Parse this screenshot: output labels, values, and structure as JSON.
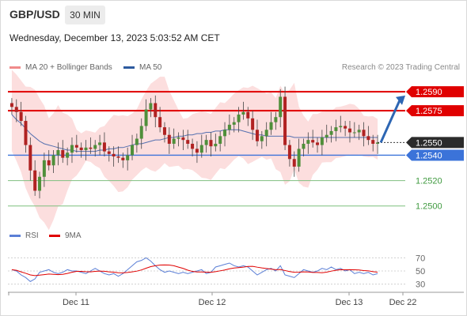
{
  "header": {
    "pair": "GBP/USD",
    "timeframe": "30 MIN",
    "datetime": "Wednesday, December 13, 2023 5:03:52 AM CET"
  },
  "legend": {
    "ma20": "MA 20 + Bollinger Bands",
    "ma50": "MA 50",
    "credit": "Research © 2023 Trading Central"
  },
  "rsi_legend": {
    "rsi": "RSI",
    "ma": "9MA"
  },
  "colors": {
    "resistance": "#e00000",
    "support_current": "#3b73d9",
    "support": "#7fbf7f",
    "bollinger": "#fbd3d3",
    "ma50": "#5570b0",
    "rsi": "#5b7fd6",
    "rsi_ma": "#e00000",
    "arrow": "#2d66b3",
    "bull": "#4f8f3a",
    "bear": "#b02222"
  },
  "chart_data": [
    {
      "type": "candlestick",
      "x_ticks": [
        "Dec 11",
        "Dec 12",
        "Dec 13",
        "Dec 22"
      ],
      "ylim": [
        1.2493,
        1.26
      ],
      "levels": [
        {
          "value": "1.2590",
          "kind": "resistance"
        },
        {
          "value": "1.2575",
          "kind": "resistance"
        },
        {
          "value": "1.2550",
          "kind": "current"
        },
        {
          "value": "1.2540",
          "kind": "support-current"
        },
        {
          "value": "1.2520",
          "kind": "support"
        },
        {
          "value": "1.2500",
          "kind": "support"
        }
      ],
      "close": [
        1.2578,
        1.2574,
        1.2567,
        1.2548,
        1.2528,
        1.2512,
        1.2523,
        1.2536,
        1.2532,
        1.254,
        1.2544,
        1.2538,
        1.2542,
        1.2548,
        1.2546,
        1.2544,
        1.2546,
        1.2545,
        1.2548,
        1.255,
        1.2543,
        1.2541,
        1.2539,
        1.2538,
        1.2536,
        1.254,
        1.2548,
        1.2553,
        1.2563,
        1.2576,
        1.2581,
        1.257,
        1.2562,
        1.2556,
        1.2549,
        1.2553,
        1.2554,
        1.2552,
        1.2549,
        1.2545,
        1.2542,
        1.2548,
        1.2552,
        1.2547,
        1.2549,
        1.2555,
        1.256,
        1.2564,
        1.2566,
        1.2572,
        1.2574,
        1.2569,
        1.256,
        1.2551,
        1.2555,
        1.256,
        1.2566,
        1.257,
        1.2586,
        1.2548,
        1.2537,
        1.2531,
        1.2545,
        1.2549,
        1.2552,
        1.255,
        1.2548,
        1.2554,
        1.2556,
        1.2559,
        1.2562,
        1.2563,
        1.2561,
        1.2558,
        1.2558,
        1.256,
        1.2555,
        1.2552,
        1.2549,
        1.255
      ],
      "ma50": [
        1.2572,
        1.2568,
        1.2565,
        1.2561,
        1.2557,
        1.2554,
        1.2551,
        1.2549,
        1.2548,
        1.2547,
        1.2546,
        1.2545,
        1.2544,
        1.2544,
        1.2543,
        1.2543,
        1.2543,
        1.2543,
        1.2543,
        1.2544,
        1.2544,
        1.2545,
        1.2545,
        1.2546,
        1.2546,
        1.2547,
        1.2548,
        1.2549,
        1.2549,
        1.255,
        1.2551,
        1.2552,
        1.2552,
        1.2553,
        1.2554,
        1.2554,
        1.2555,
        1.2555,
        1.2556,
        1.2556,
        1.2557,
        1.2557,
        1.2558,
        1.2558,
        1.2559,
        1.2559,
        1.256,
        1.256,
        1.256,
        1.256,
        1.2559,
        1.2558,
        1.2557,
        1.2556,
        1.2556,
        1.2555,
        1.2555,
        1.2555,
        1.2555,
        1.2555,
        1.2555,
        1.2554,
        1.2554,
        1.2554,
        1.2554,
        1.2554,
        1.2554,
        1.2554,
        1.2554,
        1.2554,
        1.2554,
        1.2554,
        1.2554,
        1.2554,
        1.2554,
        1.2554,
        1.2554,
        1.2554,
        1.2554,
        1.2554
      ],
      "bb_width": [
        0.0032,
        0.0034,
        0.0036,
        0.004,
        0.0044,
        0.0046,
        0.0047,
        0.0046,
        0.0044,
        0.0042,
        0.004,
        0.0036,
        0.003,
        0.0024,
        0.0018,
        0.0014,
        0.0012,
        0.0012,
        0.0013,
        0.0016,
        0.002,
        0.0024,
        0.0028,
        0.003,
        0.003,
        0.0028,
        0.0026,
        0.0026,
        0.0028,
        0.003,
        0.0034,
        0.0036,
        0.0036,
        0.0034,
        0.003,
        0.0026,
        0.0022,
        0.002,
        0.002,
        0.0022,
        0.0024,
        0.0026,
        0.0026,
        0.0026,
        0.0026,
        0.0026,
        0.0026,
        0.0026,
        0.0026,
        0.0026,
        0.0028,
        0.003,
        0.003,
        0.0028,
        0.0026,
        0.0026,
        0.0026,
        0.0028,
        0.0034,
        0.0036,
        0.0036,
        0.0034,
        0.003,
        0.0028,
        0.0026,
        0.0024,
        0.0022,
        0.002,
        0.002,
        0.002,
        0.002,
        0.002,
        0.002,
        0.002,
        0.002,
        0.0018,
        0.0016,
        0.0016,
        0.0016,
        0.0016
      ]
    },
    {
      "type": "line",
      "ylim": [
        20,
        80
      ],
      "y_ticks": [
        70,
        50,
        30
      ],
      "rsi": [
        52,
        50,
        44,
        40,
        34,
        38,
        48,
        50,
        52,
        48,
        46,
        48,
        52,
        50,
        50,
        48,
        46,
        50,
        54,
        50,
        46,
        44,
        46,
        42,
        46,
        52,
        58,
        64,
        66,
        70,
        65,
        58,
        52,
        48,
        50,
        48,
        46,
        48,
        46,
        48,
        50,
        52,
        46,
        48,
        56,
        58,
        60,
        62,
        58,
        56,
        58,
        56,
        50,
        44,
        48,
        52,
        54,
        50,
        58,
        44,
        42,
        40,
        46,
        52,
        50,
        48,
        50,
        54,
        52,
        56,
        52,
        54,
        50,
        52,
        46,
        48,
        46,
        48,
        44,
        46
      ]
    }
  ],
  "trend_arrow": {
    "from": 1.255,
    "to": 1.2587
  }
}
